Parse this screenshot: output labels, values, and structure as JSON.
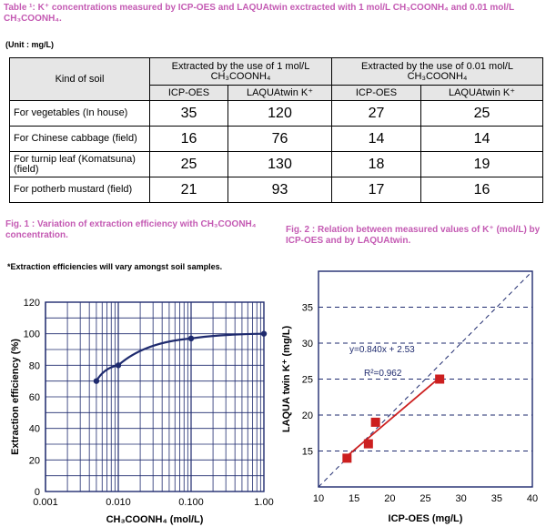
{
  "title": "Table ¹: K⁺ concentrations measured by ICP-OES and LAQUAtwin exctracted with 1 mol/L CH₃COONH₄ and 0.01 mol/L CH₃COONH₄.",
  "unit": "(Unit : mg/L)",
  "table": {
    "col_kind": "Kind of soil",
    "group1": "Extracted by the use of 1 mol/L CH₃COONH₄",
    "group2": "Extracted by the use of 0.01 mol/L CH₃COONH₄",
    "sub_icp1": "ICP-OES",
    "sub_laqua1": "LAQUAtwin K⁺",
    "sub_icp2": "ICP-OES",
    "sub_laqua2": "LAQUAtwin K⁺",
    "rows": [
      {
        "soil": "For vegetables (In house)",
        "v1": "35",
        "v2": "120",
        "v3": "27",
        "v4": "25"
      },
      {
        "soil": "For Chinese cabbage (field)",
        "v1": "16",
        "v2": "76",
        "v3": "14",
        "v4": "14"
      },
      {
        "soil": "For turnip leaf (Komatsuna)(field)",
        "v1": "25",
        "v2": "130",
        "v3": "18",
        "v4": "19"
      },
      {
        "soil": "For potherb mustard (field)",
        "v1": "21",
        "v2": "93",
        "v3": "17",
        "v4": "16"
      }
    ]
  },
  "fig1": {
    "caption": "Fig. 1 : Variation of extraction efficiency with CH₃COONH₄ concentration.",
    "note": "*Extraction efficiencies will vary amongst soil samples."
  },
  "fig2": {
    "caption": "Fig. 2 : Relation between measured values of K⁺ (mol/L) by ICP-OES and by LAQUAtwin."
  },
  "chart_data": [
    {
      "type": "line",
      "xlabel": "CH₃COONH₄ (mol/L)",
      "ylabel": "Extraction efficiency (%)",
      "xscale": "log",
      "xlim": [
        0.001,
        1.0
      ],
      "ylim": [
        0,
        120
      ],
      "xticks": [
        "0.001",
        "0.010",
        "0.100",
        "1.00"
      ],
      "yticks": [
        "0",
        "20",
        "40",
        "60",
        "80",
        "100",
        "120"
      ],
      "grid": true,
      "line_color": "#1e2a6e",
      "series": [
        {
          "x": [
            0.005,
            0.01,
            0.1,
            1.0
          ],
          "y": [
            70,
            80,
            97,
            100
          ]
        }
      ]
    },
    {
      "type": "scatter",
      "xlabel": "ICP-OES (mg/L)",
      "ylabel": "LAQUA twin K⁺ (mg/L)",
      "xlim": [
        10,
        40
      ],
      "ylim": [
        10,
        40
      ],
      "xticks": [
        "10",
        "15",
        "20",
        "25",
        "30",
        "35",
        "40"
      ],
      "yticks": [
        "15",
        "20",
        "25",
        "30",
        "35"
      ],
      "marker_color": "#cc1f1f",
      "series": [
        {
          "x": [
            14,
            17,
            18,
            27
          ],
          "y": [
            14,
            16,
            19,
            25
          ]
        }
      ],
      "trendline": {
        "slope": 0.84,
        "intercept": 2.53
      },
      "equation": "y=0.840x + 2.53",
      "r2": "R²=0.962"
    }
  ]
}
